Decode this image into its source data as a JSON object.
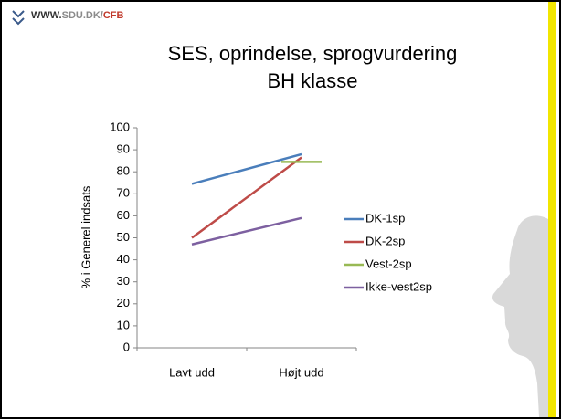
{
  "header": {
    "url": [
      "WWW.",
      "SDU.DK/",
      "CFB"
    ]
  },
  "chart_data": {
    "type": "line",
    "title": [
      "SES, oprindelse, sprogvurdering",
      "BH klasse"
    ],
    "y_label": "% i Generel indsats",
    "categories": [
      "Lavt udd",
      "Højt udd"
    ],
    "series": [
      {
        "name": "DK-1sp",
        "color": "#4a7ebb",
        "values": [
          74.5,
          88
        ]
      },
      {
        "name": "DK-2sp",
        "color": "#be4b48",
        "values": [
          50,
          86.5
        ]
      },
      {
        "name": "Vest-2sp",
        "color": "#98b954",
        "values": [
          null,
          84.5
        ]
      },
      {
        "name": "Ikke-vest2sp",
        "color": "#7d60a0",
        "values": [
          47,
          59
        ]
      }
    ],
    "ylim": [
      0,
      100
    ],
    "yticks": [
      0,
      10,
      20,
      30,
      40,
      50,
      60,
      70,
      80,
      90,
      100
    ],
    "grid": false,
    "legend": "right"
  }
}
